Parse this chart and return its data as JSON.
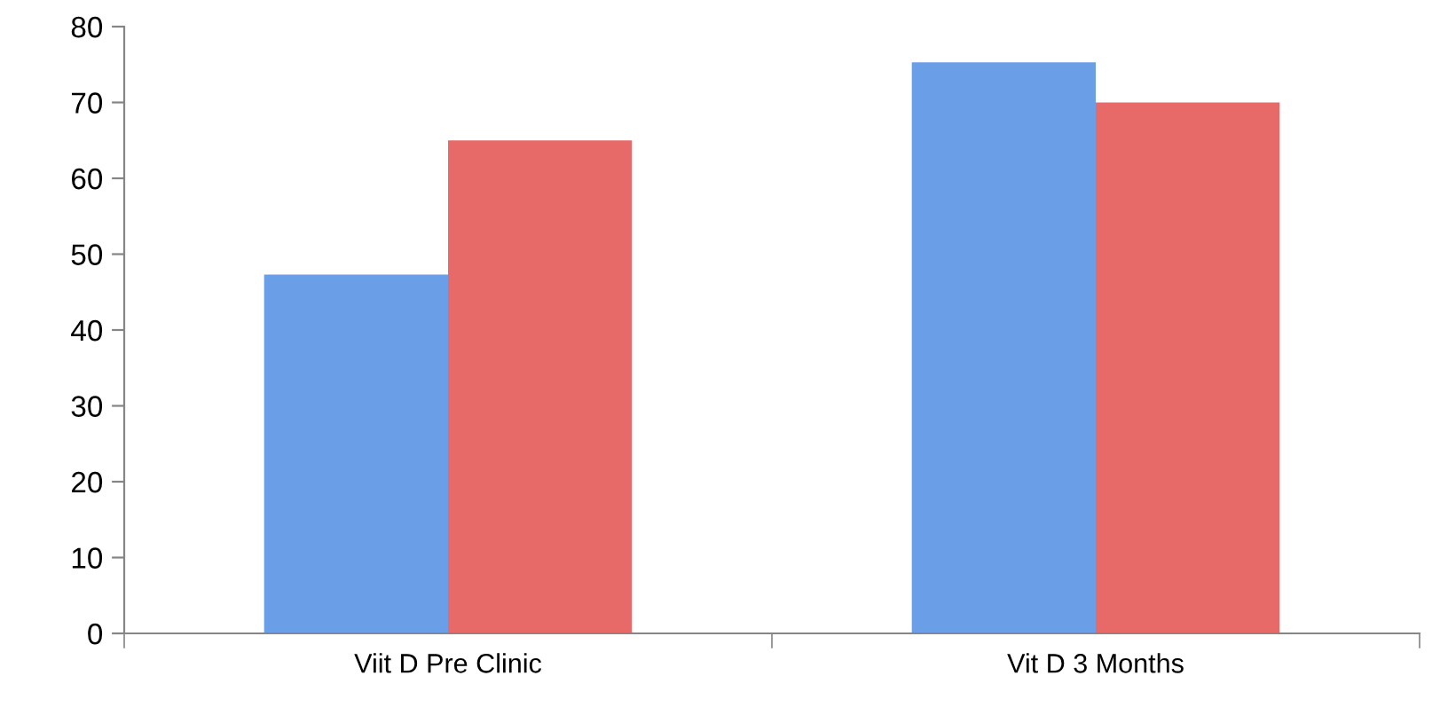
{
  "chart_data": {
    "type": "bar",
    "categories": [
      "Viit D Pre Clinic",
      "Vit D 3 Months"
    ],
    "series": [
      {
        "color": "#6a9fe8",
        "values": [
          47.3,
          75.3
        ]
      },
      {
        "color": "#e86a68",
        "values": [
          65,
          70
        ]
      }
    ],
    "ylim": [
      0,
      80
    ],
    "yticks": [
      0,
      10,
      20,
      30,
      40,
      50,
      60,
      70,
      80
    ],
    "grid": false,
    "legend": false
  }
}
